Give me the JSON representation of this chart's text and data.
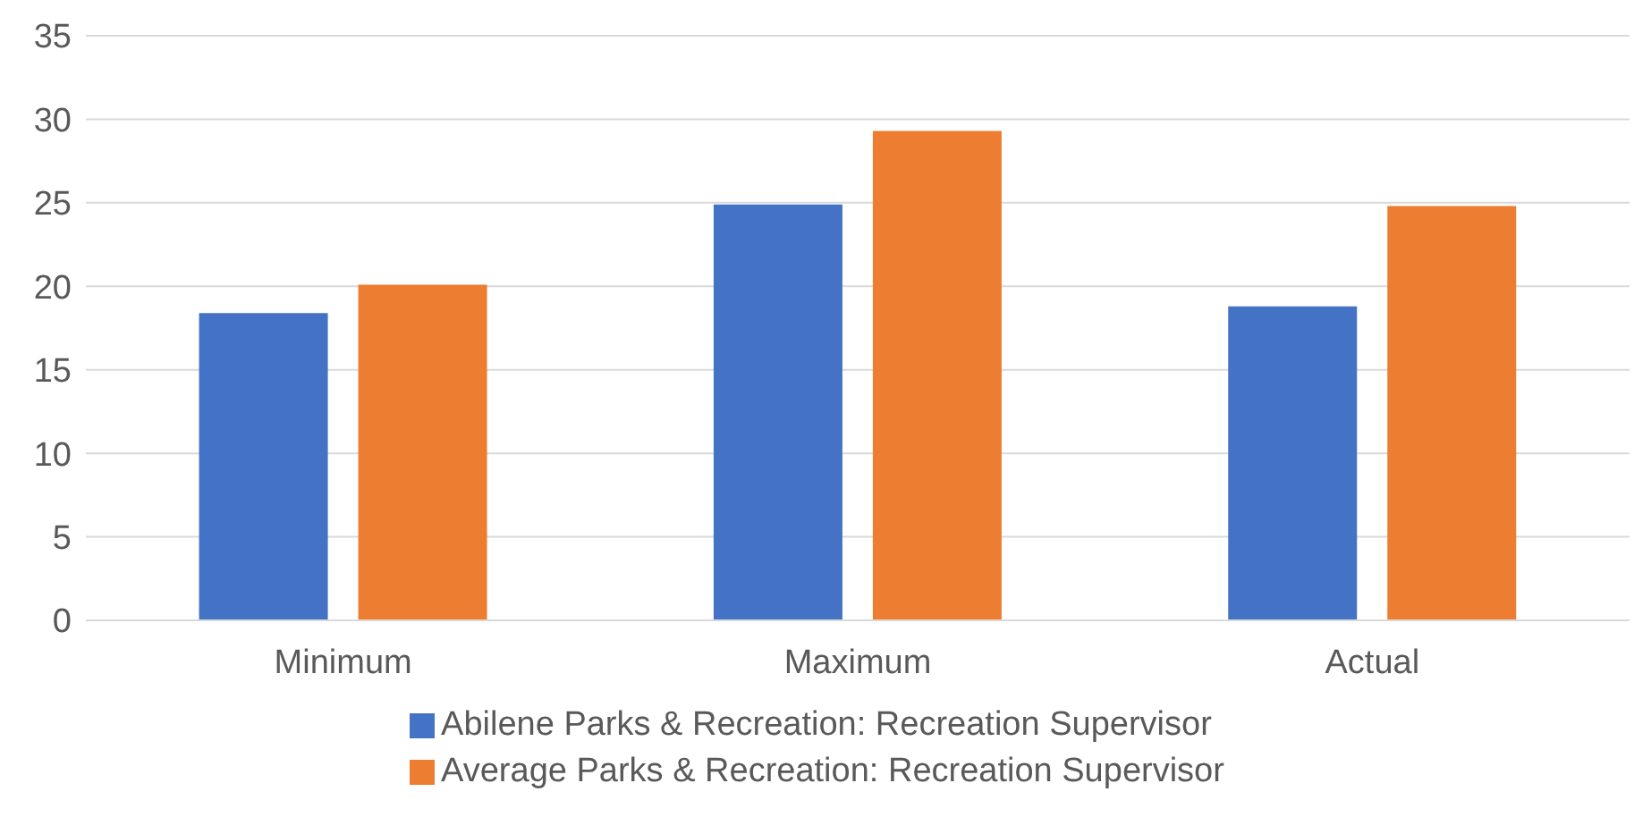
{
  "chart_data": {
    "type": "bar",
    "categories": [
      "Minimum",
      "Maximum",
      "Actual"
    ],
    "series": [
      {
        "name": "Abilene Parks & Recreation: Recreation Supervisor",
        "color": "#4472c4",
        "values": [
          18.4,
          24.9,
          18.8
        ]
      },
      {
        "name": "Average Parks & Recreation: Recreation Supervisor",
        "color": "#ed7d31",
        "values": [
          20.1,
          29.3,
          24.8
        ]
      }
    ],
    "ylim": [
      0,
      35
    ],
    "yticks": [
      0,
      5,
      10,
      15,
      20,
      25,
      30,
      35
    ],
    "grid": "y",
    "legend": "bottom"
  }
}
